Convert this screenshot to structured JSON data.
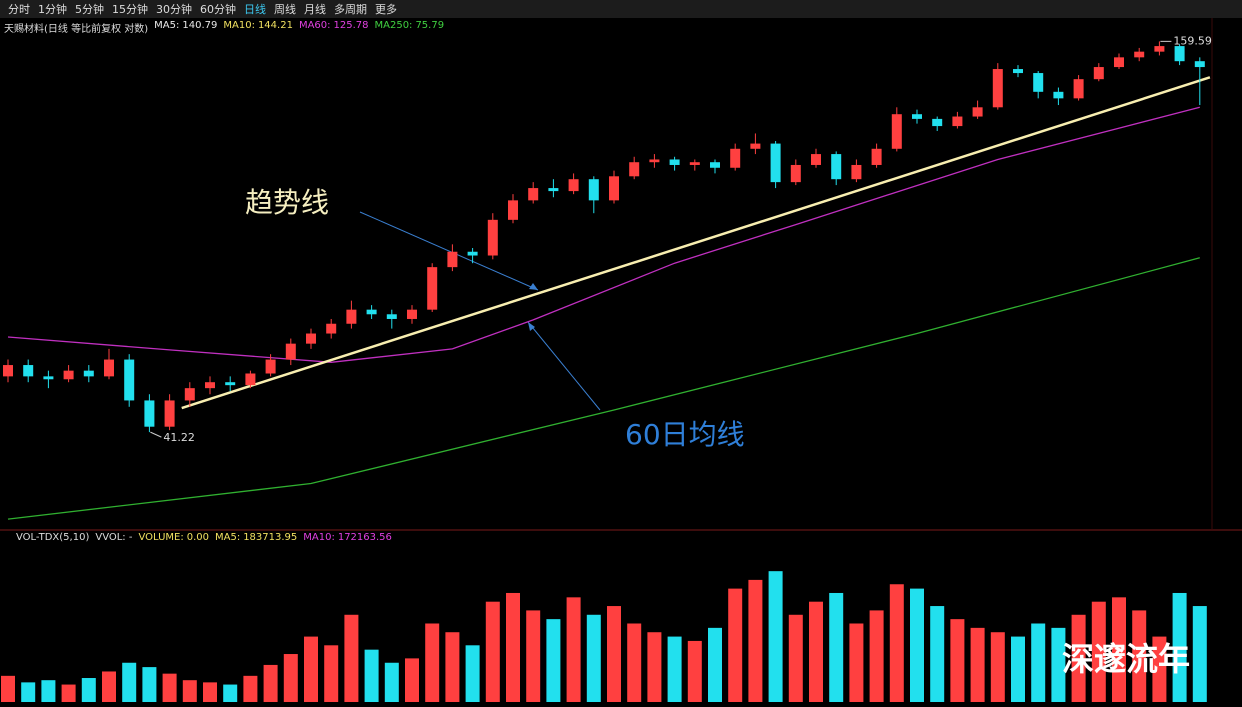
{
  "toolbar": {
    "items": [
      "分时",
      "1分钟",
      "5分钟",
      "15分钟",
      "30分钟",
      "60分钟",
      "日线",
      "周线",
      "月线",
      "多周期",
      "更多"
    ],
    "active": 6
  },
  "chart_data": {
    "type": "candlestick",
    "title": "天赐材料(日线 等比前复权 对数)",
    "log_scale": true,
    "ylim": [
      30.4,
      166
    ],
    "up_color": "#ff4040",
    "down_color": "#22e0ee",
    "indicators": [
      {
        "label": "MA5:",
        "value": 140.79,
        "color": "#e8e8e8"
      },
      {
        "label": "MA10:",
        "value": 144.21,
        "color": "#f0e060"
      },
      {
        "label": "MA60:",
        "value": 125.78,
        "color": "#e040e0"
      },
      {
        "label": "MA250:",
        "value": 75.79,
        "color": "#40d040"
      }
    ],
    "candles": [
      [
        50,
        53,
        49,
        52
      ],
      [
        52,
        53,
        49,
        50
      ],
      [
        50,
        51,
        48,
        49.5
      ],
      [
        49.5,
        52,
        49,
        51
      ],
      [
        51,
        52,
        49,
        50
      ],
      [
        50,
        55,
        49.5,
        53
      ],
      [
        53,
        54,
        45,
        46
      ],
      [
        46,
        47,
        41.22,
        42
      ],
      [
        42,
        47,
        41.5,
        46
      ],
      [
        46,
        49,
        45,
        48
      ],
      [
        48,
        50,
        47,
        49
      ],
      [
        49,
        50,
        47.5,
        48.5
      ],
      [
        48.5,
        51,
        48,
        50.5
      ],
      [
        50.5,
        54,
        50,
        53
      ],
      [
        53,
        57,
        52,
        56
      ],
      [
        56,
        59,
        55,
        58
      ],
      [
        58,
        61,
        57,
        60
      ],
      [
        60,
        65,
        59,
        63
      ],
      [
        63,
        64,
        61,
        62
      ],
      [
        62,
        63,
        59,
        61
      ],
      [
        61,
        64,
        60,
        63
      ],
      [
        63,
        74,
        62.5,
        73
      ],
      [
        73,
        79,
        72,
        77
      ],
      [
        77,
        78,
        74,
        76
      ],
      [
        76,
        88,
        75,
        86
      ],
      [
        86,
        94,
        85,
        92
      ],
      [
        92,
        98,
        91,
        96
      ],
      [
        96,
        99,
        93,
        95
      ],
      [
        95,
        101,
        94,
        99
      ],
      [
        99,
        100,
        88,
        92
      ],
      [
        92,
        102,
        91,
        100
      ],
      [
        100,
        107,
        99,
        105
      ],
      [
        105,
        108,
        103,
        106
      ],
      [
        106,
        107,
        102,
        104
      ],
      [
        104,
        106,
        102,
        105
      ],
      [
        105,
        106,
        101,
        103
      ],
      [
        103,
        112,
        102,
        110
      ],
      [
        110,
        116,
        108,
        112
      ],
      [
        112,
        113,
        96,
        98
      ],
      [
        98,
        106,
        97,
        104
      ],
      [
        104,
        110,
        103,
        108
      ],
      [
        108,
        109,
        97,
        99
      ],
      [
        99,
        106,
        98,
        104
      ],
      [
        104,
        112,
        103,
        110
      ],
      [
        110,
        127,
        109,
        124
      ],
      [
        124,
        126,
        120,
        122
      ],
      [
        122,
        123,
        117,
        119
      ],
      [
        119,
        125,
        118,
        123
      ],
      [
        123,
        130,
        122,
        127
      ],
      [
        127,
        148,
        126,
        145
      ],
      [
        145,
        147,
        141,
        143
      ],
      [
        143,
        144,
        131,
        134
      ],
      [
        134,
        136,
        128,
        131
      ],
      [
        131,
        142,
        130,
        140
      ],
      [
        140,
        148,
        139,
        146
      ],
      [
        146,
        153,
        145,
        151
      ],
      [
        151,
        156,
        149,
        154
      ],
      [
        154,
        159.59,
        152,
        157
      ],
      [
        157,
        158,
        147,
        149
      ],
      [
        149,
        151,
        128,
        146
      ]
    ],
    "ma_lines": [
      {
        "x": [
          0,
          8,
          16,
          22,
          26,
          33,
          39,
          49,
          59
        ],
        "values": [
          57.3,
          54.8,
          52.5,
          55,
          60.8,
          74,
          84.6,
          106,
          127
        ],
        "color": "#c030c0"
      },
      {
        "x": [
          0,
          15,
          30,
          45,
          59
        ],
        "values": [
          30.5,
          34.5,
          44.5,
          58,
          75.4
        ],
        "color": "#30b030"
      }
    ],
    "trend_line": {
      "x": [
        8.6,
        59.5
      ],
      "values": [
        44.8,
        140.9
      ],
      "color": "#f8eeb0"
    },
    "low_label_index": 7,
    "high_label_index": 57,
    "annotations": [
      {
        "text": "趋势线",
        "color": "#f5eec0"
      },
      {
        "text": "60日均线",
        "color": "#2f7fd8"
      }
    ],
    "volume": {
      "header": [
        "VOL-TDX(5,10)",
        "VVOL: -"
      ],
      "indicators": [
        {
          "label": "VOLUME:",
          "value": 0,
          "value_label": "0.00",
          "color": "#f0e060"
        },
        {
          "label": "MA5:",
          "value": 183713.95,
          "color": "#f0e060"
        },
        {
          "label": "MA10:",
          "value": 172163.56,
          "color": "#e040e0"
        }
      ],
      "ylim": [
        0,
        360000
      ],
      "values": [
        60000,
        45000,
        50000,
        40000,
        55000,
        70000,
        90000,
        80000,
        65000,
        50000,
        45000,
        40000,
        60000,
        85000,
        110000,
        150000,
        130000,
        200000,
        120000,
        90000,
        100000,
        180000,
        160000,
        130000,
        230000,
        250000,
        210000,
        190000,
        240000,
        200000,
        220000,
        180000,
        160000,
        150000,
        140000,
        170000,
        260000,
        280000,
        300000,
        200000,
        230000,
        250000,
        180000,
        210000,
        270000,
        260000,
        220000,
        190000,
        170000,
        160000,
        150000,
        180000,
        170000,
        200000,
        230000,
        240000,
        210000,
        150000,
        250000,
        220000
      ]
    },
    "watermark": "深邃流年"
  }
}
